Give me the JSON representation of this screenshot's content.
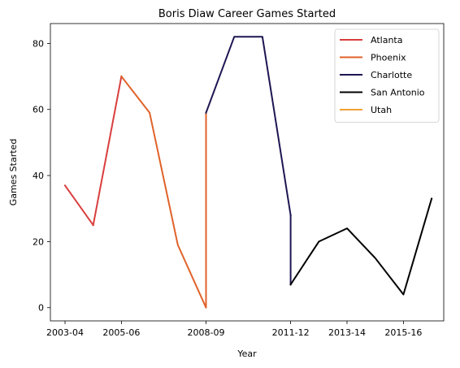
{
  "chart_data": {
    "type": "line",
    "title": "Boris Diaw Career Games Started",
    "xlabel": "Year",
    "ylabel": "Games Started",
    "x_categories": [
      "2003-04",
      "2004-05",
      "2005-06",
      "2006-07",
      "2007-08",
      "2008-09",
      "2009-10",
      "2010-11",
      "2011-12",
      "2012-13",
      "2013-14",
      "2014-15",
      "2015-16",
      "2016-17"
    ],
    "x_ticks": [
      "2003-04",
      "2005-06",
      "2008-09",
      "2011-12",
      "2013-14",
      "2015-16"
    ],
    "ylim": [
      -4,
      86
    ],
    "y_ticks": [
      0,
      20,
      40,
      60,
      80
    ],
    "grid": false,
    "legend_position": "top-right",
    "series": [
      {
        "name": "Atlanta",
        "color": "#d93f3f",
        "points": [
          [
            "2003-04",
            37
          ],
          [
            "2004-05",
            25
          ]
        ]
      },
      {
        "name": "Phoenix",
        "color": "#e0622a",
        "points": [
          [
            "2005-06",
            70
          ],
          [
            "2006-07",
            59
          ],
          [
            "2007-08",
            19
          ],
          [
            "2008-09",
            0
          ],
          [
            "2008-09",
            59
          ]
        ]
      },
      {
        "name": "Charlotte",
        "color": "#1d1652",
        "points": [
          [
            "2008-09",
            59
          ],
          [
            "2009-10",
            82
          ],
          [
            "2010-11",
            82
          ],
          [
            "2011-12",
            28
          ]
        ]
      },
      {
        "name": "San Antonio",
        "color": "#000000",
        "points": [
          [
            "2011-12",
            7
          ],
          [
            "2012-13",
            20
          ],
          [
            "2013-14",
            24
          ],
          [
            "2014-15",
            15
          ],
          [
            "2015-16",
            4
          ],
          [
            "2016-17",
            33
          ]
        ]
      },
      {
        "name": "Utah",
        "color": "#f5a034",
        "points": []
      }
    ],
    "connectors": [
      {
        "color": "#d93f3f",
        "from": [
          "2004-05",
          25
        ],
        "to": [
          "2005-06",
          70
        ]
      },
      {
        "color": "#1d1652",
        "from": [
          "2011-12",
          28
        ],
        "to": [
          "2011-12",
          7
        ]
      }
    ]
  }
}
